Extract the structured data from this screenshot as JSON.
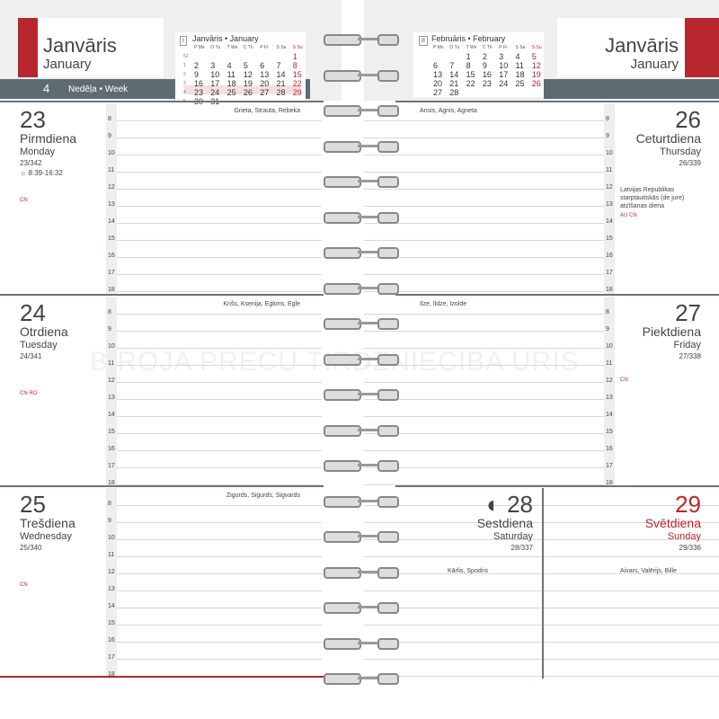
{
  "header": {
    "left": {
      "month_lv": "Janvāris",
      "month_en": "January",
      "week_number": "4",
      "week_label": "Nedēļa  •  Week"
    },
    "right": {
      "month_lv": "Janvāris",
      "month_en": "January"
    }
  },
  "mini_calendars": [
    {
      "month_number": "I",
      "title": "Janvāris • January",
      "weekday_headers": [
        "P Mo",
        "O Tu",
        "T We",
        "C Th",
        "P Fr",
        "S Sa",
        "S Su"
      ],
      "weeks": [
        {
          "number": "52",
          "days": [
            null,
            null,
            null,
            null,
            null,
            null,
            "1"
          ]
        },
        {
          "number": "1",
          "days": [
            "2",
            "3",
            "4",
            "5",
            "6",
            "7",
            "8"
          ]
        },
        {
          "number": "2",
          "days": [
            "9",
            "10",
            "11",
            "12",
            "13",
            "14",
            "15"
          ]
        },
        {
          "number": "3",
          "days": [
            "16",
            "17",
            "18",
            "19",
            "20",
            "21",
            "22"
          ]
        },
        {
          "number": "4",
          "days": [
            "23",
            "24",
            "25",
            "26",
            "27",
            "28",
            "29"
          ]
        },
        {
          "number": "5",
          "days": [
            "30",
            "31",
            null,
            null,
            null,
            null,
            null
          ]
        }
      ]
    },
    {
      "month_number": "II",
      "title": "Februāris • February",
      "weekday_headers": [
        "P Mo",
        "O Tu",
        "T We",
        "C Th",
        "P Fr",
        "S Sa",
        "S Su"
      ],
      "weeks": [
        {
          "days": [
            null,
            null,
            "1",
            "2",
            "3",
            "4",
            "5"
          ]
        },
        {
          "days": [
            "6",
            "7",
            "8",
            "9",
            "10",
            "11",
            "12"
          ]
        },
        {
          "days": [
            "13",
            "14",
            "15",
            "16",
            "17",
            "18",
            "19"
          ]
        },
        {
          "days": [
            "20",
            "21",
            "22",
            "23",
            "24",
            "25",
            "26"
          ]
        },
        {
          "days": [
            "27",
            "28",
            null,
            null,
            null,
            null,
            null
          ]
        }
      ]
    }
  ],
  "hours": [
    "8",
    "9",
    "10",
    "11",
    "12",
    "13",
    "14",
    "15",
    "16",
    "17",
    "18"
  ],
  "days": [
    {
      "day": "23",
      "name_lv": "Pirmdiena",
      "name_en": "Monday",
      "day_of_year": "23/342",
      "sun": "☼ 8:39-16:32",
      "notes": "CN",
      "name_days": "Grieta, Strauta, Rebeka"
    },
    {
      "day": "24",
      "name_lv": "Otrdiena",
      "name_en": "Tuesday",
      "day_of_year": "24/341",
      "notes": "CN RO",
      "name_days": "Krišs, Ksenija, Eglons, Egle"
    },
    {
      "day": "25",
      "name_lv": "Trešdiena",
      "name_en": "Wednesday",
      "day_of_year": "25/340",
      "notes": "CN",
      "name_days": "Zigurds, Sigurds, Sigvards"
    },
    {
      "day": "26",
      "name_lv": "Ceturtdiena",
      "name_en": "Thursday",
      "day_of_year": "26/339",
      "holiday": "Latvijas Republikas starptautiskās (de jure) atzīšanas diena",
      "notes": "AU CN",
      "name_days": "Ansis, Agnis, Agneta"
    },
    {
      "day": "27",
      "name_lv": "Piektdiena",
      "name_en": "Friday",
      "day_of_year": "27/338",
      "notes": "CN",
      "name_days": "Ilze, Ildze, Izolde"
    },
    {
      "day": "◐ 28",
      "name_lv": "Sestdiena",
      "name_en": "Saturday",
      "day_of_year": "28/337",
      "name_days": "Kārlis, Spodris"
    },
    {
      "day": "29",
      "name_lv": "Svētdiena",
      "name_en": "Sunday",
      "day_of_year": "29/336",
      "name_days": "Aivars, Valērijs, Bille"
    }
  ],
  "watermark": "BIROJA PRECU TIRDZNIECIBA URIS"
}
